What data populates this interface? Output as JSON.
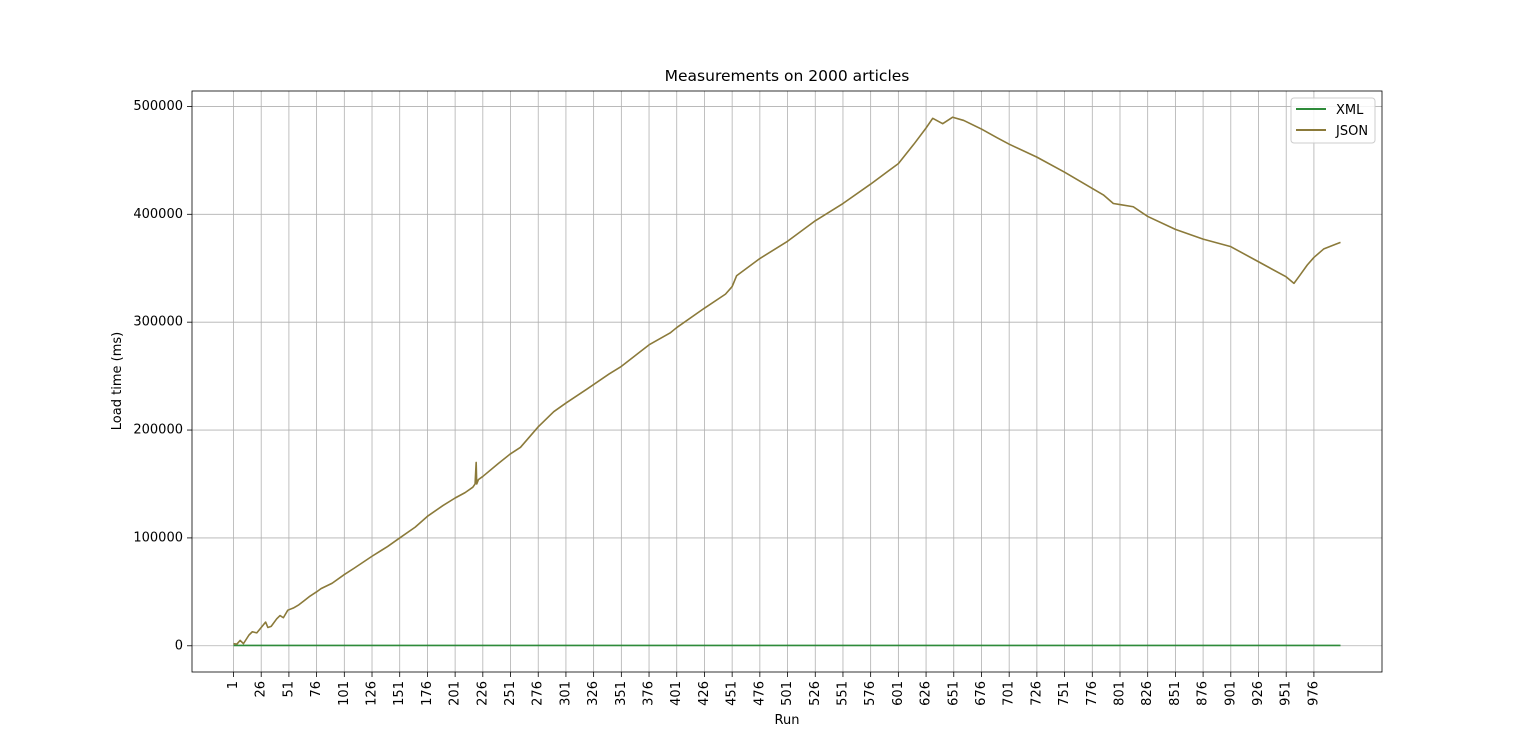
{
  "chart_data": {
    "type": "line",
    "title": "Measurements on 2000 articles",
    "xlabel": "Run",
    "ylabel": "Load time (ms)",
    "xlim": [
      -36.45,
      1037.45
    ],
    "ylim": [
      -24300,
      514300
    ],
    "x_ticks": [
      "1",
      "26",
      "51",
      "76",
      "101",
      "126",
      "151",
      "176",
      "201",
      "226",
      "251",
      "276",
      "301",
      "326",
      "351",
      "376",
      "401",
      "426",
      "451",
      "476",
      "501",
      "526",
      "551",
      "576",
      "601",
      "626",
      "651",
      "676",
      "701",
      "726",
      "751",
      "776",
      "801",
      "826",
      "851",
      "876",
      "901",
      "926",
      "951",
      "976"
    ],
    "y_ticks": [
      "0",
      "100000",
      "200000",
      "300000",
      "400000",
      "500000"
    ],
    "grid": true,
    "legend_position": "upper right",
    "series": [
      {
        "name": "XML",
        "color": "#2e8b3a",
        "points": [
          [
            1,
            300
          ],
          [
            1000,
            300
          ]
        ]
      },
      {
        "name": "JSON",
        "color": "#8b7a3a",
        "points": [
          [
            1,
            2000
          ],
          [
            4,
            1500
          ],
          [
            7,
            5000
          ],
          [
            10,
            2000
          ],
          [
            15,
            10000
          ],
          [
            18,
            13000
          ],
          [
            22,
            12000
          ],
          [
            26,
            17000
          ],
          [
            30,
            22000
          ],
          [
            32,
            17000
          ],
          [
            35,
            18000
          ],
          [
            40,
            25000
          ],
          [
            43,
            28000
          ],
          [
            46,
            26000
          ],
          [
            50,
            33000
          ],
          [
            55,
            35000
          ],
          [
            60,
            38000
          ],
          [
            65,
            42000
          ],
          [
            70,
            46000
          ],
          [
            76,
            50000
          ],
          [
            80,
            53000
          ],
          [
            90,
            58000
          ],
          [
            101,
            66000
          ],
          [
            110,
            72000
          ],
          [
            126,
            83000
          ],
          [
            140,
            92000
          ],
          [
            151,
            100000
          ],
          [
            165,
            110000
          ],
          [
            176,
            120000
          ],
          [
            190,
            130000
          ],
          [
            201,
            137000
          ],
          [
            210,
            142000
          ],
          [
            217,
            147000
          ],
          [
            219,
            150000
          ],
          [
            220,
            170000
          ],
          [
            220.5,
            150000
          ],
          [
            222,
            154000
          ],
          [
            226,
            157000
          ],
          [
            240,
            169000
          ],
          [
            251,
            178000
          ],
          [
            260,
            184000
          ],
          [
            276,
            203000
          ],
          [
            290,
            217000
          ],
          [
            301,
            225000
          ],
          [
            320,
            238000
          ],
          [
            340,
            252000
          ],
          [
            351,
            259000
          ],
          [
            376,
            279000
          ],
          [
            395,
            290000
          ],
          [
            401,
            295000
          ],
          [
            426,
            313000
          ],
          [
            445,
            326000
          ],
          [
            451,
            333000
          ],
          [
            455,
            343000
          ],
          [
            476,
            359000
          ],
          [
            501,
            375000
          ],
          [
            526,
            394000
          ],
          [
            551,
            410000
          ],
          [
            576,
            428000
          ],
          [
            601,
            447000
          ],
          [
            615,
            465000
          ],
          [
            626,
            480000
          ],
          [
            632,
            489000
          ],
          [
            641,
            484000
          ],
          [
            650,
            490000
          ],
          [
            660,
            487000
          ],
          [
            676,
            479000
          ],
          [
            690,
            471000
          ],
          [
            701,
            465000
          ],
          [
            726,
            453000
          ],
          [
            751,
            439000
          ],
          [
            776,
            424000
          ],
          [
            786,
            418000
          ],
          [
            795,
            410000
          ],
          [
            801,
            409000
          ],
          [
            813,
            407000
          ],
          [
            826,
            398000
          ],
          [
            851,
            386000
          ],
          [
            876,
            377000
          ],
          [
            901,
            370000
          ],
          [
            926,
            356000
          ],
          [
            951,
            342000
          ],
          [
            958,
            336000
          ],
          [
            963,
            343000
          ],
          [
            970,
            353000
          ],
          [
            976,
            360000
          ],
          [
            985,
            368000
          ],
          [
            995,
            372000
          ],
          [
            1000,
            374000
          ]
        ]
      }
    ]
  }
}
